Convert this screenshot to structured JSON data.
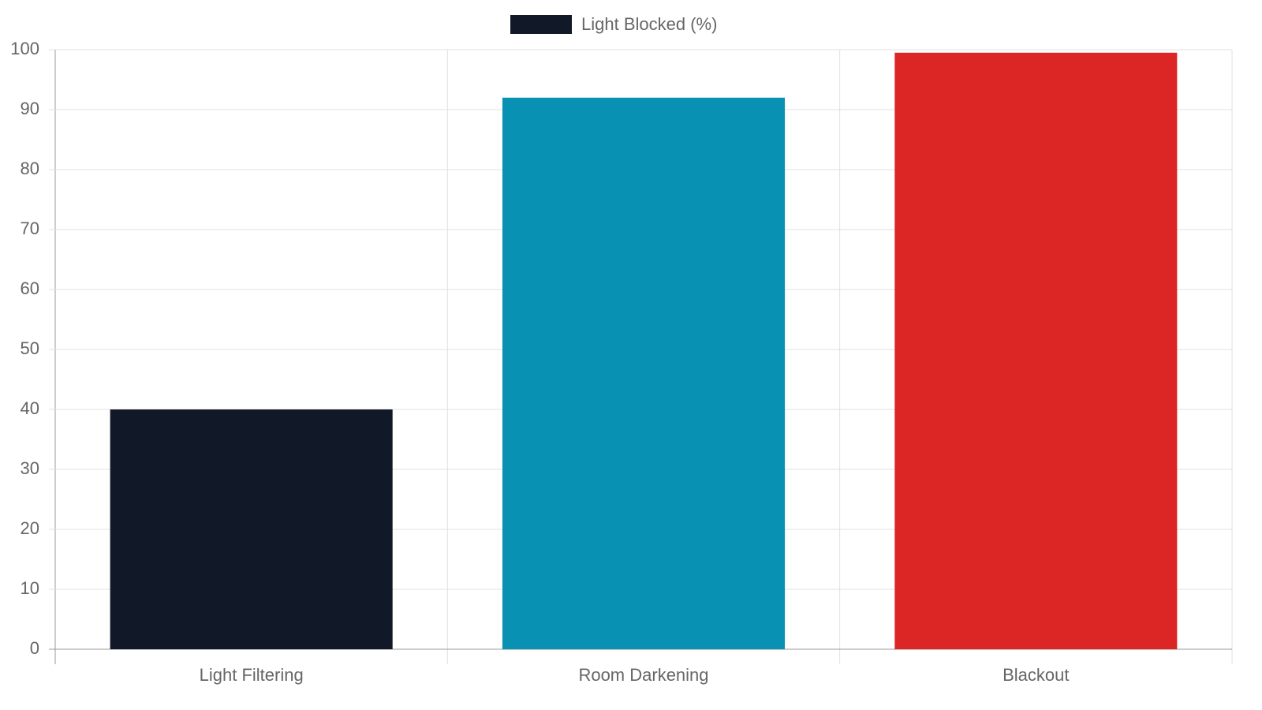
{
  "chart_data": {
    "type": "bar",
    "categories": [
      "Light Filtering",
      "Room Darkening",
      "Blackout"
    ],
    "series": [
      {
        "name": "Light Blocked (%)",
        "color": "#111827",
        "colors": [
          "#111827",
          "#0891b2",
          "#dc2626"
        ],
        "values": [
          40,
          92,
          99.5
        ]
      }
    ],
    "ylim": [
      0,
      100
    ],
    "yticks": [
      0,
      10,
      20,
      30,
      40,
      50,
      60,
      70,
      80,
      90,
      100
    ],
    "grid": true,
    "legend": "top"
  }
}
